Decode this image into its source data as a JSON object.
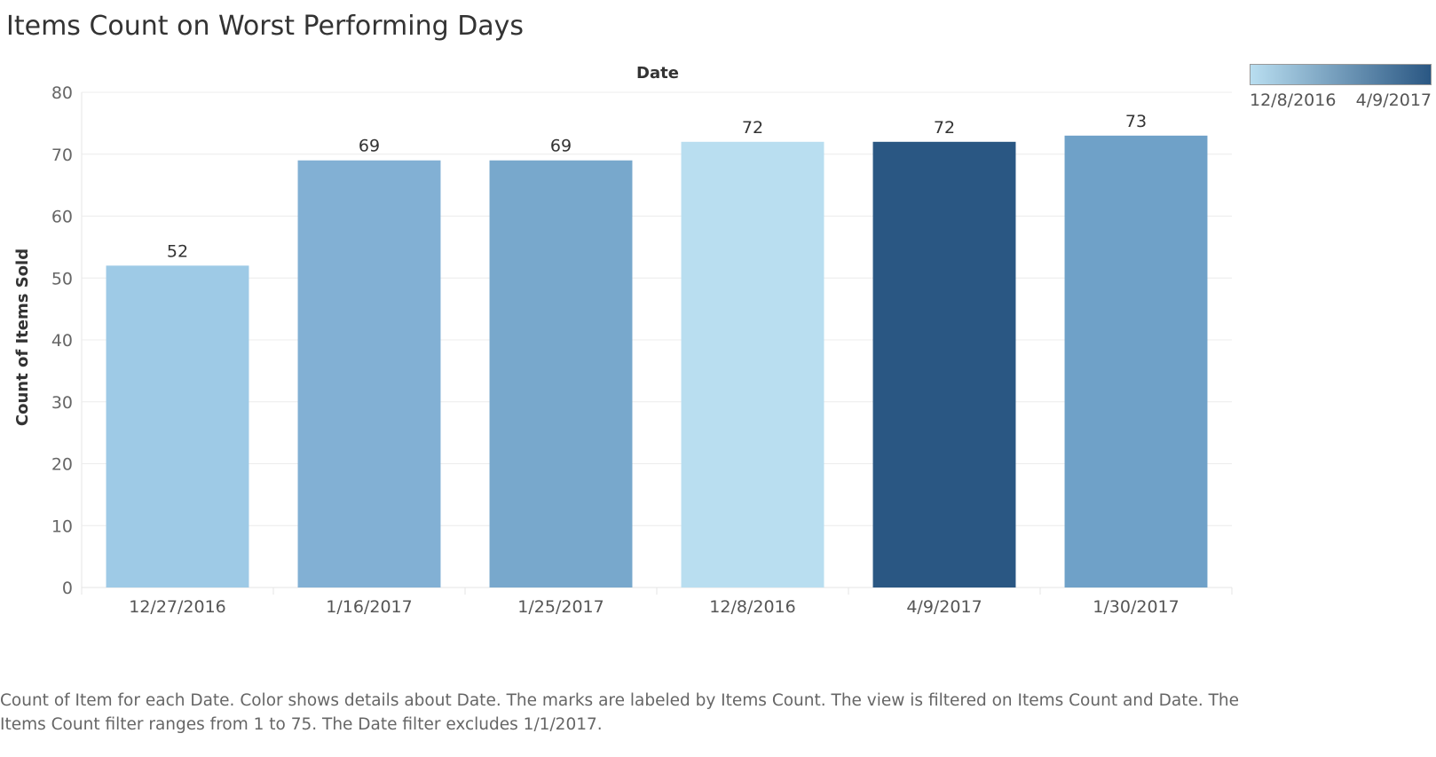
{
  "title": "Items Count on Worst Performing Days",
  "caption": "Count of Item for each Date.  Color shows details about Date.  The marks are labeled by Items Count. The view is filtered on Items Count and Date. The Items Count filter ranges from 1 to 75. The Date filter excludes 1/1/2017.",
  "legend": {
    "min_label": "12/8/2016",
    "max_label": "4/9/2017",
    "color_low": "#b9def0",
    "color_high": "#2a5783"
  },
  "chart_data": {
    "type": "bar",
    "title": "Items Count on Worst Performing Days",
    "xlabel": "Date",
    "ylabel": "Count of Items Sold",
    "categories": [
      "12/27/2016",
      "1/16/2017",
      "1/25/2017",
      "12/8/2016",
      "4/9/2017",
      "1/30/2017"
    ],
    "values": [
      52,
      69,
      69,
      72,
      72,
      73
    ],
    "colors": [
      "#9ecae6",
      "#82b0d4",
      "#78a8cc",
      "#b9def0",
      "#2a5783",
      "#6fa1c8"
    ],
    "ylim": [
      0,
      80
    ],
    "yticks": [
      0,
      10,
      20,
      30,
      40,
      50,
      60,
      70,
      80
    ],
    "grid": true,
    "legend_position": "top-right"
  }
}
